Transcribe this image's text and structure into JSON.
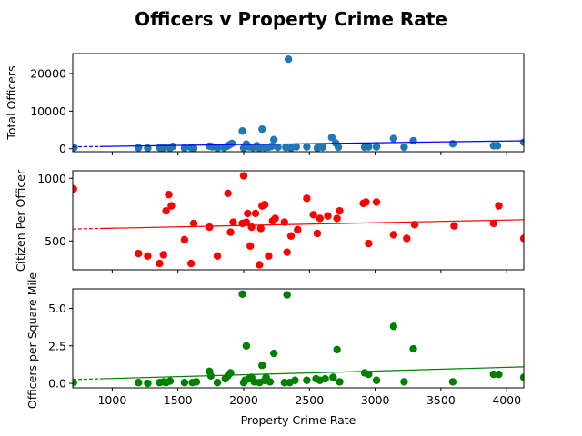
{
  "figure": {
    "title": "Officers v Property Crime Rate"
  },
  "chart_data": [
    {
      "type": "scatter",
      "title": "",
      "xlabel": "",
      "ylabel": "Total Officers",
      "xlim": [
        700,
        4130
      ],
      "ylim": [
        -800,
        25300
      ],
      "x_tick_labels_visible": false,
      "yticks": [
        0,
        10000,
        20000
      ],
      "ytick_labels": [
        "0",
        "10000",
        "20000"
      ],
      "point_color": "#1f77b4",
      "trend_color": "#0000ff",
      "trend": {
        "x": [
          700,
          4130
        ],
        "y": [
          500,
          2100
        ]
      },
      "points": [
        [
          710,
          300
        ],
        [
          1200,
          250
        ],
        [
          1270,
          150
        ],
        [
          1360,
          300
        ],
        [
          1380,
          120
        ],
        [
          1400,
          400
        ],
        [
          1440,
          200
        ],
        [
          1460,
          600
        ],
        [
          1550,
          200
        ],
        [
          1600,
          300
        ],
        [
          1620,
          100
        ],
        [
          1740,
          700
        ],
        [
          1760,
          500
        ],
        [
          1800,
          200
        ],
        [
          1850,
          300
        ],
        [
          1870,
          600
        ],
        [
          1890,
          1000
        ],
        [
          1910,
          1400
        ],
        [
          1990,
          4700
        ],
        [
          2000,
          200
        ],
        [
          2020,
          1200
        ],
        [
          2040,
          500
        ],
        [
          2070,
          300
        ],
        [
          2100,
          800
        ],
        [
          2120,
          150
        ],
        [
          2140,
          5200
        ],
        [
          2160,
          300
        ],
        [
          2190,
          400
        ],
        [
          2210,
          600
        ],
        [
          2230,
          2400
        ],
        [
          2260,
          400
        ],
        [
          2320,
          350
        ],
        [
          2340,
          23800
        ],
        [
          2360,
          200
        ],
        [
          2400,
          500
        ],
        [
          2480,
          500
        ],
        [
          2560,
          200
        ],
        [
          2580,
          500
        ],
        [
          2600,
          400
        ],
        [
          2670,
          3000
        ],
        [
          2700,
          1500
        ],
        [
          2720,
          400
        ],
        [
          2920,
          400
        ],
        [
          2950,
          500
        ],
        [
          3010,
          500
        ],
        [
          3140,
          2700
        ],
        [
          3220,
          400
        ],
        [
          3290,
          2100
        ],
        [
          3590,
          1300
        ],
        [
          3900,
          800
        ],
        [
          3930,
          800
        ],
        [
          4130,
          1700
        ]
      ]
    },
    {
      "type": "scatter",
      "title": "",
      "xlabel": "",
      "ylabel": "Citizen Per Officer",
      "xlim": [
        700,
        4130
      ],
      "ylim": [
        270,
        1060
      ],
      "x_tick_labels_visible": false,
      "yticks": [
        500,
        1000
      ],
      "ytick_labels": [
        "500",
        "1000"
      ],
      "point_color": "#ff0000",
      "trend_color": "#ff0000",
      "trend": {
        "x": [
          700,
          4130
        ],
        "y": [
          595,
          670
        ]
      },
      "points": [
        [
          705,
          915
        ],
        [
          1200,
          400
        ],
        [
          1270,
          380
        ],
        [
          1360,
          320
        ],
        [
          1390,
          390
        ],
        [
          1410,
          740
        ],
        [
          1430,
          870
        ],
        [
          1450,
          780
        ],
        [
          1550,
          510
        ],
        [
          1600,
          320
        ],
        [
          1620,
          640
        ],
        [
          1740,
          610
        ],
        [
          1800,
          380
        ],
        [
          1880,
          880
        ],
        [
          1900,
          570
        ],
        [
          1920,
          650
        ],
        [
          1990,
          640
        ],
        [
          2000,
          1020
        ],
        [
          2020,
          650
        ],
        [
          2030,
          720
        ],
        [
          2050,
          460
        ],
        [
          2060,
          610
        ],
        [
          2090,
          720
        ],
        [
          2120,
          310
        ],
        [
          2130,
          600
        ],
        [
          2140,
          780
        ],
        [
          2160,
          790
        ],
        [
          2190,
          380
        ],
        [
          2220,
          660
        ],
        [
          2240,
          680
        ],
        [
          2310,
          650
        ],
        [
          2330,
          410
        ],
        [
          2360,
          540
        ],
        [
          2410,
          590
        ],
        [
          2480,
          840
        ],
        [
          2530,
          710
        ],
        [
          2560,
          560
        ],
        [
          2580,
          680
        ],
        [
          2640,
          700
        ],
        [
          2710,
          680
        ],
        [
          2730,
          740
        ],
        [
          2910,
          800
        ],
        [
          2930,
          810
        ],
        [
          2950,
          480
        ],
        [
          3010,
          810
        ],
        [
          3140,
          550
        ],
        [
          3240,
          520
        ],
        [
          3300,
          630
        ],
        [
          3600,
          620
        ],
        [
          3900,
          640
        ],
        [
          3940,
          780
        ],
        [
          4130,
          520
        ]
      ]
    },
    {
      "type": "scatter",
      "title": "",
      "xlabel": "Property Crime Rate",
      "ylabel": "Officers per Square Mile",
      "xlim": [
        700,
        4130
      ],
      "ylim": [
        -0.3,
        6.3
      ],
      "x_tick_labels_visible": true,
      "xticks": [
        1000,
        1500,
        2000,
        2500,
        3000,
        3500,
        4000
      ],
      "xtick_labels": [
        "1000",
        "1500",
        "2000",
        "2500",
        "3000",
        "3500",
        "4000"
      ],
      "yticks": [
        0.0,
        2.5,
        5.0
      ],
      "ytick_labels": [
        "0.0",
        "2.5",
        "5.0"
      ],
      "point_color": "#008000",
      "trend_color": "#008000",
      "trend": {
        "x": [
          700,
          4130
        ],
        "y": [
          0.25,
          1.1
        ]
      },
      "points": [
        [
          705,
          0.05
        ],
        [
          1200,
          0.05
        ],
        [
          1270,
          0.0
        ],
        [
          1360,
          0.05
        ],
        [
          1390,
          0.1
        ],
        [
          1410,
          0.05
        ],
        [
          1440,
          0.15
        ],
        [
          1550,
          0.05
        ],
        [
          1610,
          0.05
        ],
        [
          1640,
          0.1
        ],
        [
          1740,
          0.8
        ],
        [
          1750,
          0.5
        ],
        [
          1800,
          0.05
        ],
        [
          1860,
          0.3
        ],
        [
          1880,
          0.5
        ],
        [
          1900,
          0.7
        ],
        [
          1990,
          5.95
        ],
        [
          2000,
          0.05
        ],
        [
          2010,
          0.2
        ],
        [
          2020,
          2.5
        ],
        [
          2040,
          0.3
        ],
        [
          2060,
          0.4
        ],
        [
          2080,
          0.1
        ],
        [
          2120,
          0.05
        ],
        [
          2140,
          1.2
        ],
        [
          2160,
          0.2
        ],
        [
          2170,
          0.4
        ],
        [
          2200,
          0.1
        ],
        [
          2230,
          2.0
        ],
        [
          2310,
          0.05
        ],
        [
          2330,
          5.9
        ],
        [
          2350,
          0.05
        ],
        [
          2390,
          0.2
        ],
        [
          2480,
          0.2
        ],
        [
          2550,
          0.3
        ],
        [
          2580,
          0.2
        ],
        [
          2620,
          0.3
        ],
        [
          2680,
          0.4
        ],
        [
          2710,
          2.25
        ],
        [
          2730,
          0.1
        ],
        [
          2920,
          0.7
        ],
        [
          2950,
          0.6
        ],
        [
          3010,
          0.2
        ],
        [
          3140,
          3.8
        ],
        [
          3220,
          0.1
        ],
        [
          3290,
          2.3
        ],
        [
          3590,
          0.1
        ],
        [
          3900,
          0.6
        ],
        [
          3940,
          0.6
        ],
        [
          4130,
          0.4
        ]
      ]
    }
  ]
}
